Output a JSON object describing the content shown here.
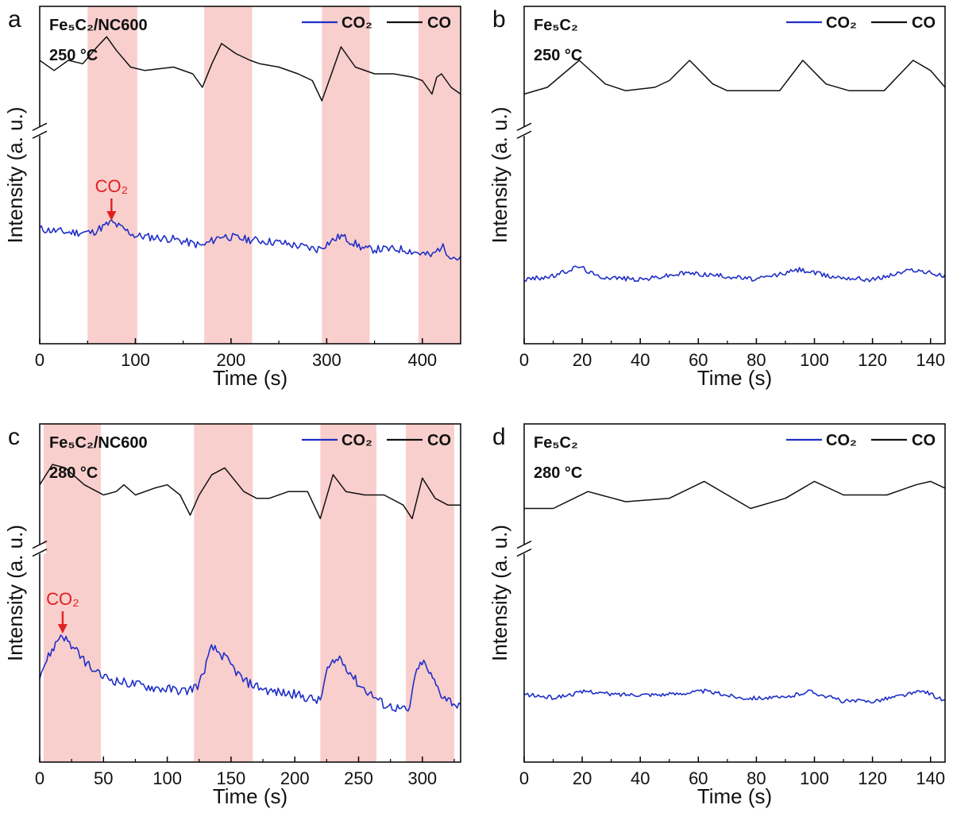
{
  "co2_marker_text": "CO₂",
  "chart_data": [
    {
      "type": "line",
      "panel_letter": "a",
      "label_lines": [
        "Fe₅C₂/NC600",
        "250 °C"
      ],
      "xlabel": "Time (s)",
      "ylabel": "Intensity (a. u.)",
      "xlim": [
        0,
        440
      ],
      "xticks": [
        0,
        100,
        200,
        300,
        400
      ],
      "ylim": [
        0,
        100
      ],
      "y_axis_break": 63,
      "grid": false,
      "legend": {
        "placement": "top-right",
        "entries": [
          "CO₂",
          "CO"
        ]
      },
      "shaded_regions": [
        [
          50,
          102
        ],
        [
          172,
          222
        ],
        [
          295,
          345
        ],
        [
          396,
          440
        ]
      ],
      "co2_marker_at": 75,
      "series": [
        {
          "name": "CO₂",
          "color": "#1f2fc7",
          "noise": 1.2,
          "points": [
            [
              0,
              34
            ],
            [
              30,
              33
            ],
            [
              55,
              33
            ],
            [
              75,
              36
            ],
            [
              100,
              32
            ],
            [
              140,
              31
            ],
            [
              170,
              29
            ],
            [
              190,
              32
            ],
            [
              215,
              31
            ],
            [
              250,
              30
            ],
            [
              290,
              28
            ],
            [
              315,
              32
            ],
            [
              340,
              28
            ],
            [
              380,
              28
            ],
            [
              410,
              26
            ],
            [
              420,
              29
            ],
            [
              430,
              26
            ],
            [
              440,
              25
            ]
          ]
        },
        {
          "name": "CO",
          "color": "#111111",
          "points": [
            [
              0,
              84
            ],
            [
              15,
              81
            ],
            [
              30,
              84
            ],
            [
              45,
              83
            ],
            [
              60,
              88
            ],
            [
              70,
              91
            ],
            [
              80,
              87
            ],
            [
              95,
              82
            ],
            [
              110,
              81
            ],
            [
              140,
              82
            ],
            [
              160,
              80
            ],
            [
              170,
              76
            ],
            [
              180,
              83
            ],
            [
              190,
              89
            ],
            [
              205,
              86
            ],
            [
              220,
              84
            ],
            [
              230,
              83
            ],
            [
              250,
              82
            ],
            [
              270,
              80
            ],
            [
              285,
              78
            ],
            [
              295,
              72
            ],
            [
              305,
              80
            ],
            [
              315,
              88
            ],
            [
              330,
              82
            ],
            [
              350,
              80
            ],
            [
              370,
              80
            ],
            [
              390,
              79
            ],
            [
              400,
              78
            ],
            [
              410,
              74
            ],
            [
              415,
              79
            ],
            [
              420,
              80
            ],
            [
              430,
              76
            ],
            [
              440,
              74
            ]
          ]
        }
      ]
    },
    {
      "type": "line",
      "panel_letter": "b",
      "label_lines": [
        "Fe₅C₂",
        "250 °C"
      ],
      "xlabel": "Time (s)",
      "ylabel": "Intensity (a. u.)",
      "xlim": [
        0,
        145
      ],
      "xticks": [
        0,
        20,
        40,
        60,
        80,
        100,
        120,
        140
      ],
      "ylim": [
        0,
        100
      ],
      "y_axis_break": 63,
      "grid": false,
      "legend": {
        "placement": "top-right",
        "entries": [
          "CO₂",
          "CO"
        ]
      },
      "shaded_regions": [],
      "series": [
        {
          "name": "CO₂",
          "color": "#1f2fc7",
          "noise": 0.7,
          "points": [
            [
              0,
              19
            ],
            [
              10,
              20
            ],
            [
              19,
              23
            ],
            [
              25,
              20
            ],
            [
              40,
              19
            ],
            [
              56,
              21
            ],
            [
              70,
              20
            ],
            [
              80,
              19
            ],
            [
              95,
              22
            ],
            [
              105,
              20
            ],
            [
              120,
              19
            ],
            [
              134,
              22
            ],
            [
              145,
              20
            ]
          ]
        },
        {
          "name": "CO",
          "color": "#111111",
          "points": [
            [
              0,
              74
            ],
            [
              8,
              76
            ],
            [
              19,
              84
            ],
            [
              28,
              77
            ],
            [
              35,
              75
            ],
            [
              45,
              76
            ],
            [
              50,
              78
            ],
            [
              57,
              84
            ],
            [
              65,
              77
            ],
            [
              70,
              75
            ],
            [
              80,
              75
            ],
            [
              88,
              75
            ],
            [
              96,
              84
            ],
            [
              104,
              77
            ],
            [
              112,
              75
            ],
            [
              124,
              75
            ],
            [
              134,
              84
            ],
            [
              140,
              81
            ],
            [
              145,
              76
            ]
          ]
        }
      ]
    },
    {
      "type": "line",
      "panel_letter": "c",
      "label_lines": [
        "Fe₅C₂/NC600",
        "280 °C"
      ],
      "xlabel": "Time (s)",
      "ylabel": "Intensity (a. u.)",
      "xlim": [
        0,
        330
      ],
      "xticks": [
        0,
        50,
        100,
        150,
        200,
        250,
        300
      ],
      "ylim": [
        0,
        100
      ],
      "y_axis_break": 63,
      "grid": false,
      "legend": {
        "placement": "top-right",
        "entries": [
          "CO₂",
          "CO"
        ]
      },
      "shaded_regions": [
        [
          3,
          48
        ],
        [
          121,
          167
        ],
        [
          220,
          264
        ],
        [
          287,
          325
        ]
      ],
      "co2_marker_at": 18,
      "series": [
        {
          "name": "CO₂",
          "color": "#1f2fc7",
          "noise": 1.4,
          "points": [
            [
              0,
              26
            ],
            [
              8,
              32
            ],
            [
              17,
              38
            ],
            [
              30,
              32
            ],
            [
              45,
              26
            ],
            [
              60,
              24
            ],
            [
              90,
              22
            ],
            [
              115,
              21
            ],
            [
              125,
              23
            ],
            [
              135,
              34
            ],
            [
              145,
              31
            ],
            [
              160,
              24
            ],
            [
              180,
              21
            ],
            [
              200,
              20
            ],
            [
              220,
              18
            ],
            [
              225,
              27
            ],
            [
              235,
              31
            ],
            [
              250,
              23
            ],
            [
              270,
              17
            ],
            [
              290,
              15
            ],
            [
              293,
              24
            ],
            [
              300,
              30
            ],
            [
              315,
              20
            ],
            [
              330,
              16
            ]
          ]
        },
        {
          "name": "CO",
          "color": "#111111",
          "points": [
            [
              0,
              82
            ],
            [
              10,
              88
            ],
            [
              20,
              87
            ],
            [
              35,
              82
            ],
            [
              50,
              79
            ],
            [
              60,
              80
            ],
            [
              66,
              82
            ],
            [
              75,
              79
            ],
            [
              90,
              81
            ],
            [
              100,
              82
            ],
            [
              110,
              79
            ],
            [
              118,
              73
            ],
            [
              125,
              79
            ],
            [
              135,
              85
            ],
            [
              145,
              87
            ],
            [
              160,
              80
            ],
            [
              170,
              78
            ],
            [
              180,
              78
            ],
            [
              195,
              80
            ],
            [
              210,
              80
            ],
            [
              220,
              72
            ],
            [
              230,
              85
            ],
            [
              240,
              80
            ],
            [
              255,
              79
            ],
            [
              270,
              79
            ],
            [
              285,
              76
            ],
            [
              292,
              72
            ],
            [
              300,
              84
            ],
            [
              310,
              78
            ],
            [
              320,
              76
            ],
            [
              330,
              76
            ]
          ]
        }
      ]
    },
    {
      "type": "line",
      "panel_letter": "d",
      "label_lines": [
        "Fe₅C₂",
        "280 °C"
      ],
      "xlabel": "Time (s)",
      "ylabel": "Intensity (a. u.)",
      "xlim": [
        0,
        145
      ],
      "xticks": [
        0,
        20,
        40,
        60,
        80,
        100,
        120,
        140
      ],
      "ylim": [
        0,
        100
      ],
      "y_axis_break": 63,
      "grid": false,
      "legend": {
        "placement": "top-right",
        "entries": [
          "CO₂",
          "CO"
        ]
      },
      "shaded_regions": [],
      "series": [
        {
          "name": "CO₂",
          "color": "#1f2fc7",
          "noise": 0.6,
          "points": [
            [
              0,
              20
            ],
            [
              10,
              19
            ],
            [
              22,
              21
            ],
            [
              30,
              20
            ],
            [
              50,
              20
            ],
            [
              62,
              21
            ],
            [
              75,
              19
            ],
            [
              90,
              19
            ],
            [
              98,
              21
            ],
            [
              110,
              18
            ],
            [
              120,
              18
            ],
            [
              138,
              21
            ],
            [
              145,
              18
            ]
          ]
        },
        {
          "name": "CO",
          "color": "#111111",
          "points": [
            [
              0,
              75
            ],
            [
              10,
              75
            ],
            [
              22,
              80
            ],
            [
              35,
              77
            ],
            [
              50,
              78
            ],
            [
              62,
              83
            ],
            [
              70,
              79
            ],
            [
              78,
              75
            ],
            [
              90,
              78
            ],
            [
              100,
              83
            ],
            [
              110,
              79
            ],
            [
              125,
              79
            ],
            [
              135,
              82
            ],
            [
              140,
              83
            ],
            [
              145,
              81
            ]
          ]
        }
      ]
    }
  ]
}
